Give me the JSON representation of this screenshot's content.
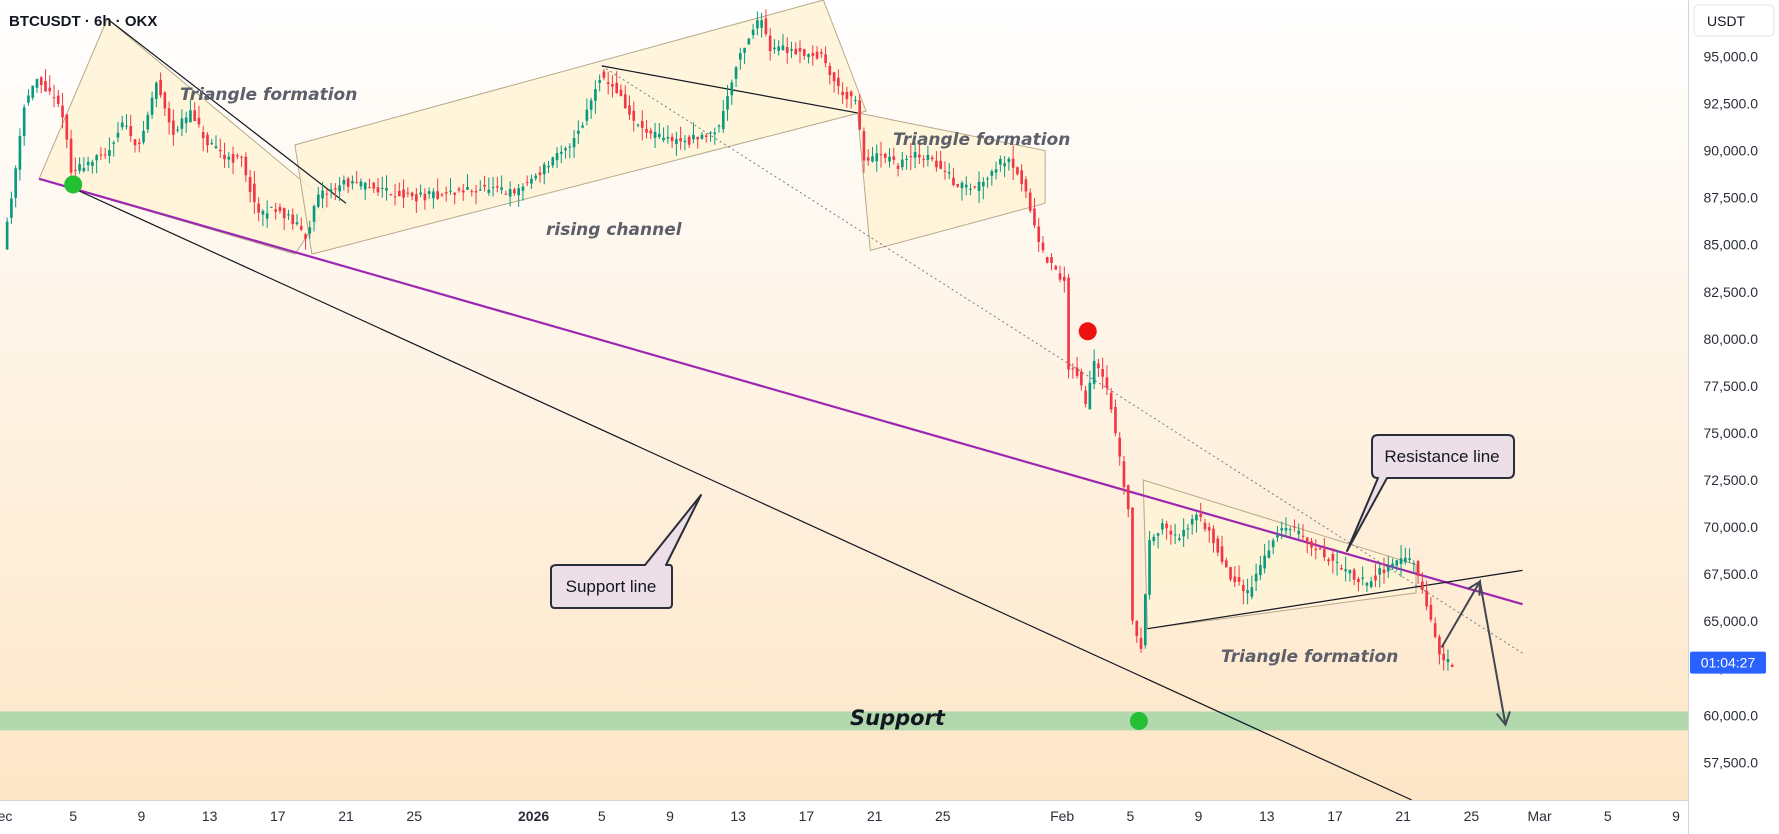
{
  "header": {
    "symbol": "BTCUSDT · 6h · OKX"
  },
  "price_axis": {
    "currency_label": "USDT",
    "countdown": "01:04:27"
  },
  "annotations": {
    "triangle_1": "Triangle formation",
    "rising_channel": "rising channel",
    "triangle_2": "Triangle formation",
    "triangle_3": "Triangle formation",
    "support": "Support",
    "support_line": "Support line",
    "resistance_line": "Resistance line"
  },
  "colors": {
    "bull": "#26a69a",
    "bull_candle": "#089981",
    "bear": "#f23645",
    "resistance": "#9c27b0",
    "support_zone": "#a5d6a7",
    "pattern_fill": "#fff3d6",
    "countdown_bg": "#2962ff",
    "marker_green": "#22c032",
    "marker_red": "#ee1111"
  },
  "chart_data": {
    "type": "candlestick",
    "symbol": "BTCUSDT",
    "interval": "6h",
    "exchange": "OKX",
    "ylim": [
      55500,
      98000
    ],
    "y_ticks": [
      57500,
      60000,
      62500,
      65000,
      67500,
      70000,
      72500,
      75000,
      77500,
      80000,
      82500,
      85000,
      87500,
      90000,
      92500,
      95000
    ],
    "y_tick_labels": [
      "57,500.0",
      "60,000.0",
      "62,500.0",
      "65,000.0",
      "67,500.0",
      "70,000.0",
      "72,500.0",
      "75,000.0",
      "77,500.0",
      "80,000.0",
      "82,500.0",
      "85,000.0",
      "87,500.0",
      "90,000.0",
      "92,500.0",
      "95,000.0"
    ],
    "xlim": [
      "2025-12-01",
      "2026-03-09"
    ],
    "x_ticks": [
      {
        "date": "2025-12-01",
        "label": "ec"
      },
      {
        "date": "2025-12-05",
        "label": "5"
      },
      {
        "date": "2025-12-09",
        "label": "9"
      },
      {
        "date": "2025-12-13",
        "label": "13"
      },
      {
        "date": "2025-12-17",
        "label": "17"
      },
      {
        "date": "2025-12-21",
        "label": "21"
      },
      {
        "date": "2025-12-25",
        "label": "25"
      },
      {
        "date": "2026-01-01",
        "label": "2026",
        "bold": true
      },
      {
        "date": "2026-01-05",
        "label": "5"
      },
      {
        "date": "2026-01-09",
        "label": "9"
      },
      {
        "date": "2026-01-13",
        "label": "13"
      },
      {
        "date": "2026-01-17",
        "label": "17"
      },
      {
        "date": "2026-01-21",
        "label": "21"
      },
      {
        "date": "2026-01-25",
        "label": "25"
      },
      {
        "date": "2026-02-01",
        "label": "Feb"
      },
      {
        "date": "2026-02-05",
        "label": "5"
      },
      {
        "date": "2026-02-09",
        "label": "9"
      },
      {
        "date": "2026-02-13",
        "label": "13"
      },
      {
        "date": "2026-02-17",
        "label": "17"
      },
      {
        "date": "2026-02-21",
        "label": "21"
      },
      {
        "date": "2026-02-25",
        "label": "25"
      },
      {
        "date": "2026-03-01",
        "label": "Mar"
      },
      {
        "date": "2026-03-05",
        "label": "5"
      },
      {
        "date": "2026-03-09",
        "label": "9"
      }
    ],
    "last_price": 62800,
    "price_path": [
      {
        "t": "2025-12-01T00:00",
        "p": 85000
      },
      {
        "t": "2025-12-01T12:00",
        "p": 87500
      },
      {
        "t": "2025-12-02T06:00",
        "p": 92500
      },
      {
        "t": "2025-12-03T00:00",
        "p": 93700
      },
      {
        "t": "2025-12-03T18:00",
        "p": 93000
      },
      {
        "t": "2025-12-04T12:00",
        "p": 92000
      },
      {
        "t": "2025-12-05T00:00",
        "p": 88800
      },
      {
        "t": "2025-12-05T18:00",
        "p": 89300
      },
      {
        "t": "2025-12-07T00:00",
        "p": 89700
      },
      {
        "t": "2025-12-08T00:00",
        "p": 91500
      },
      {
        "t": "2025-12-09T00:00",
        "p": 90200
      },
      {
        "t": "2025-12-10T00:00",
        "p": 93600
      },
      {
        "t": "2025-12-11T00:00",
        "p": 91000
      },
      {
        "t": "2025-12-12T00:00",
        "p": 92000
      },
      {
        "t": "2025-12-13T00:00",
        "p": 90300
      },
      {
        "t": "2025-12-14T00:00",
        "p": 89700
      },
      {
        "t": "2025-12-15T00:00",
        "p": 89500
      },
      {
        "t": "2025-12-16T00:00",
        "p": 86500
      },
      {
        "t": "2025-12-17T00:00",
        "p": 87000
      },
      {
        "t": "2025-12-18T00:00",
        "p": 86200
      },
      {
        "t": "2025-12-18T18:00",
        "p": 85500
      },
      {
        "t": "2025-12-19T12:00",
        "p": 87500
      },
      {
        "t": "2025-12-21T00:00",
        "p": 88300
      },
      {
        "t": "2025-12-23T00:00",
        "p": 88000
      },
      {
        "t": "2025-12-25T00:00",
        "p": 87500
      },
      {
        "t": "2025-12-27T00:00",
        "p": 87700
      },
      {
        "t": "2025-12-29T00:00",
        "p": 88000
      },
      {
        "t": "2025-12-31T00:00",
        "p": 87700
      },
      {
        "t": "2026-01-02T00:00",
        "p": 89300
      },
      {
        "t": "2026-01-03T00:00",
        "p": 90000
      },
      {
        "t": "2026-01-04T00:00",
        "p": 91500
      },
      {
        "t": "2026-01-05T00:00",
        "p": 94000
      },
      {
        "t": "2026-01-06T00:00",
        "p": 93200
      },
      {
        "t": "2026-01-07T00:00",
        "p": 91500
      },
      {
        "t": "2026-01-08T00:00",
        "p": 90800
      },
      {
        "t": "2026-01-09T00:00",
        "p": 90600
      },
      {
        "t": "2026-01-10T00:00",
        "p": 90500
      },
      {
        "t": "2026-01-11T00:00",
        "p": 90700
      },
      {
        "t": "2026-01-12T00:00",
        "p": 91300
      },
      {
        "t": "2026-01-13T00:00",
        "p": 94600
      },
      {
        "t": "2026-01-14T00:00",
        "p": 96500
      },
      {
        "t": "2026-01-14T12:00",
        "p": 97000
      },
      {
        "t": "2026-01-15T00:00",
        "p": 95500
      },
      {
        "t": "2026-01-16T00:00",
        "p": 95400
      },
      {
        "t": "2026-01-17T00:00",
        "p": 95200
      },
      {
        "t": "2026-01-18T00:00",
        "p": 95000
      },
      {
        "t": "2026-01-19T00:00",
        "p": 93300
      },
      {
        "t": "2026-01-20T00:00",
        "p": 92500
      },
      {
        "t": "2026-01-20T12:00",
        "p": 89500
      },
      {
        "t": "2026-01-21T12:00",
        "p": 89700
      },
      {
        "t": "2026-01-22T12:00",
        "p": 89200
      },
      {
        "t": "2026-01-23T12:00",
        "p": 89800
      },
      {
        "t": "2026-01-24T12:00",
        "p": 89500
      },
      {
        "t": "2026-01-26T00:00",
        "p": 88200
      },
      {
        "t": "2026-01-27T00:00",
        "p": 88000
      },
      {
        "t": "2026-01-28T00:00",
        "p": 89000
      },
      {
        "t": "2026-01-29T00:00",
        "p": 89700
      },
      {
        "t": "2026-01-30T00:00",
        "p": 87800
      },
      {
        "t": "2026-01-31T00:00",
        "p": 84500
      },
      {
        "t": "2026-01-31T18:00",
        "p": 83500
      },
      {
        "t": "2026-02-01T06:00",
        "p": 83000
      },
      {
        "t": "2026-02-01T12:00",
        "p": 78500
      },
      {
        "t": "2026-02-02T00:00",
        "p": 78200
      },
      {
        "t": "2026-02-02T12:00",
        "p": 76500
      },
      {
        "t": "2026-02-03T00:00",
        "p": 78900
      },
      {
        "t": "2026-02-03T12:00",
        "p": 78200
      },
      {
        "t": "2026-02-04T00:00",
        "p": 76200
      },
      {
        "t": "2026-02-04T12:00",
        "p": 73500
      },
      {
        "t": "2026-02-05T00:00",
        "p": 71000
      },
      {
        "t": "2026-02-05T06:00",
        "p": 65000
      },
      {
        "t": "2026-02-05T18:00",
        "p": 63500
      },
      {
        "t": "2026-02-06T06:00",
        "p": 69500
      },
      {
        "t": "2026-02-07T00:00",
        "p": 70000
      },
      {
        "t": "2026-02-08T00:00",
        "p": 69300
      },
      {
        "t": "2026-02-09T00:00",
        "p": 70800
      },
      {
        "t": "2026-02-10T00:00",
        "p": 69300
      },
      {
        "t": "2026-02-11T00:00",
        "p": 67300
      },
      {
        "t": "2026-02-12T00:00",
        "p": 66500
      },
      {
        "t": "2026-02-13T00:00",
        "p": 68500
      },
      {
        "t": "2026-02-14T00:00",
        "p": 70000
      },
      {
        "t": "2026-02-15T00:00",
        "p": 69700
      },
      {
        "t": "2026-02-16T00:00",
        "p": 68800
      },
      {
        "t": "2026-02-17T00:00",
        "p": 68200
      },
      {
        "t": "2026-02-18T00:00",
        "p": 67500
      },
      {
        "t": "2026-02-19T00:00",
        "p": 67000
      },
      {
        "t": "2026-02-20T00:00",
        "p": 67800
      },
      {
        "t": "2026-02-21T00:00",
        "p": 68300
      },
      {
        "t": "2026-02-21T18:00",
        "p": 68000
      },
      {
        "t": "2026-02-22T12:00",
        "p": 65800
      },
      {
        "t": "2026-02-23T00:00",
        "p": 64200
      },
      {
        "t": "2026-02-23T06:00",
        "p": 63100
      },
      {
        "t": "2026-02-23T18:00",
        "p": 62800
      }
    ],
    "drawings": [
      {
        "kind": "polygon",
        "name": "triangle-formation-1",
        "points": [
          {
            "t": "2025-12-03",
            "p": 88500
          },
          {
            "t": "2025-12-07",
            "p": 97000
          },
          {
            "t": "2025-12-20",
            "p": 87200
          },
          {
            "t": "2025-12-18",
            "p": 84500
          }
        ]
      },
      {
        "kind": "polygon",
        "name": "rising-channel",
        "points": [
          {
            "t": "2025-12-18",
            "p": 90300
          },
          {
            "t": "2026-01-18",
            "p": 98000
          },
          {
            "t": "2026-01-20T12:00",
            "p": 92100
          },
          {
            "t": "2025-12-19",
            "p": 84500
          }
        ]
      },
      {
        "kind": "polygon",
        "name": "triangle-formation-2",
        "points": [
          {
            "t": "2026-01-20",
            "p": 92000
          },
          {
            "t": "2026-01-31",
            "p": 90000
          },
          {
            "t": "2026-01-31",
            "p": 87200
          },
          {
            "t": "2026-01-20T18:00",
            "p": 84700
          }
        ]
      },
      {
        "kind": "polygon",
        "name": "triangle-formation-3",
        "points": [
          {
            "t": "2026-02-05T18:00",
            "p": 72500
          },
          {
            "t": "2026-02-21T18:00",
            "p": 68000
          },
          {
            "t": "2026-02-21T18:00",
            "p": 66500
          },
          {
            "t": "2026-02-06",
            "p": 64600
          }
        ]
      },
      {
        "kind": "line",
        "name": "resistance-line",
        "color": "purple",
        "from": {
          "t": "2025-12-03",
          "p": 88500
        },
        "to": {
          "t": "2026-02-28",
          "p": 65900
        }
      },
      {
        "kind": "line",
        "name": "support-line",
        "from": {
          "t": "2025-12-05",
          "p": 88000
        },
        "to": {
          "t": "2026-02-21T12:00",
          "p": 55500
        }
      },
      {
        "kind": "line",
        "name": "dotted-trendline",
        "style": "dotted",
        "from": {
          "t": "2026-01-05",
          "p": 94500
        },
        "to": {
          "t": "2026-02-28",
          "p": 63300
        }
      },
      {
        "kind": "line",
        "name": "triangle-3-extension",
        "from": {
          "t": "2026-02-06",
          "p": 64600
        },
        "to": {
          "t": "2026-02-28",
          "p": 67700
        }
      },
      {
        "kind": "line",
        "name": "triangle-1-upper-extension",
        "from": {
          "t": "2025-12-07",
          "p": 97000
        },
        "to": {
          "t": "2025-12-21",
          "p": 87200
        }
      },
      {
        "kind": "line",
        "name": "rising-channel-inner-line",
        "from": {
          "t": "2026-01-05",
          "p": 94500
        },
        "to": {
          "t": "2026-01-20",
          "p": 92000
        }
      },
      {
        "kind": "zone",
        "name": "support-zone",
        "from": 59200,
        "to": 60200
      },
      {
        "kind": "marker",
        "name": "green-marker",
        "t": "2025-12-05",
        "p": 88200
      },
      {
        "kind": "marker",
        "name": "red-marker",
        "t": "2026-02-02T12:00",
        "p": 80400
      },
      {
        "kind": "marker",
        "name": "green-marker",
        "t": "2026-02-05T12:00",
        "p": 59700
      },
      {
        "kind": "arrow-path",
        "name": "projection-arrow",
        "points": [
          {
            "t": "2026-02-23T06:00",
            "p": 63600
          },
          {
            "t": "2026-02-25T12:00",
            "p": 67100
          },
          {
            "t": "2026-02-27",
            "p": 59500
          }
        ]
      }
    ]
  }
}
